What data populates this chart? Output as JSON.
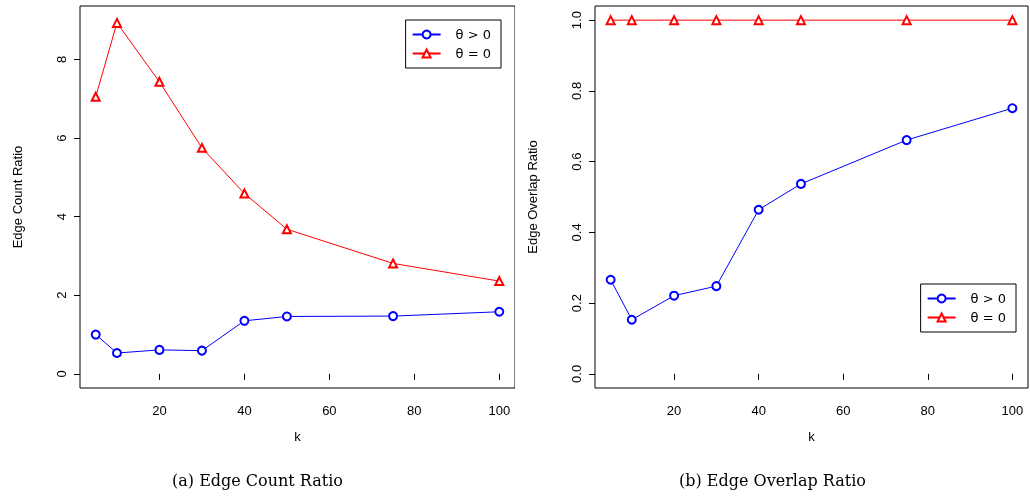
{
  "chart_data": [
    {
      "type": "line",
      "title": "(a) Edge Count Ratio",
      "xlabel": "k",
      "ylabel": "Edge Count Ratio",
      "x": [
        5,
        10,
        20,
        30,
        40,
        50,
        75,
        100
      ],
      "series": [
        {
          "name": "θ > 0",
          "color": "#0000ff",
          "marker": "circle",
          "values": [
            1.0,
            0.53,
            0.61,
            0.59,
            1.35,
            1.46,
            1.47,
            1.58
          ]
        },
        {
          "name": "θ = 0",
          "color": "#ff0000",
          "marker": "triangle",
          "values": [
            7.05,
            8.93,
            7.43,
            5.75,
            4.59,
            3.68,
            2.81,
            2.36
          ]
        }
      ],
      "xlim": [
        1.3,
        103.7
      ],
      "xticks": [
        20,
        40,
        60,
        80,
        100
      ],
      "ylim": [
        -0.36,
        9.36
      ],
      "yticks": [
        0,
        2,
        4,
        6,
        8
      ],
      "grid": false,
      "legend": "top right",
      "line_style": "solid"
    },
    {
      "type": "line",
      "title": "(b) Edge Overlap Ratio",
      "xlabel": "k",
      "ylabel": "Edge Overlap Ratio",
      "x": [
        5,
        10,
        20,
        30,
        40,
        50,
        75,
        100
      ],
      "series": [
        {
          "name": "θ > 0",
          "color": "#0000ff",
          "marker": "circle",
          "values": [
            0.266,
            0.153,
            0.221,
            0.248,
            0.464,
            0.537,
            0.661,
            0.751
          ]
        },
        {
          "name": "θ = 0",
          "color": "#ff0000",
          "marker": "triangle",
          "values": [
            1.0,
            1.0,
            1.0,
            1.0,
            1.0,
            1.0,
            1.0,
            1.0
          ]
        }
      ],
      "xlim": [
        1.3,
        103.7
      ],
      "xticks": [
        20,
        40,
        60,
        80,
        100
      ],
      "ylim": [
        -0.04,
        1.04
      ],
      "yticks": [
        {
          "value": 0,
          "label": "0.0"
        },
        0.2,
        0.4,
        0.6,
        0.8,
        {
          "value": 1,
          "label": "1.0"
        }
      ],
      "grid": false,
      "legend": "bottom right",
      "line_style": "solid"
    }
  ]
}
